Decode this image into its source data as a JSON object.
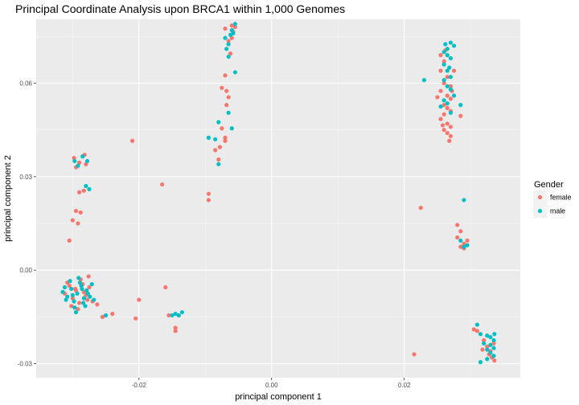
{
  "chart_data": {
    "type": "scatter",
    "title": "Principal Coordinate Analysis upon BRCA1 within 1,000 Genomes",
    "xlabel": "principal component 1",
    "ylabel": "principal component 2",
    "xlim": [
      -0.0355,
      0.0375
    ],
    "ylim": [
      -0.0345,
      0.0805
    ],
    "x_ticks": [
      -0.02,
      0.0,
      0.02
    ],
    "x_tick_labels": [
      "-0.02",
      "0.00",
      "0.02"
    ],
    "y_ticks": [
      -0.03,
      0.0,
      0.03,
      0.06
    ],
    "y_tick_labels": [
      "-0.03",
      "0.00",
      "0.03",
      "0.06"
    ],
    "grid": true,
    "legend": {
      "title": "Gender",
      "position": "right"
    },
    "series": [
      {
        "name": "female",
        "color": "#F8766D",
        "points": [
          [
            -0.0312,
            -0.0075
          ],
          [
            -0.0305,
            -0.005
          ],
          [
            -0.03,
            -0.009
          ],
          [
            -0.0295,
            -0.0065
          ],
          [
            -0.029,
            -0.0105
          ],
          [
            -0.0285,
            -0.0045
          ],
          [
            -0.028,
            -0.008
          ],
          [
            -0.0275,
            -0.0055
          ],
          [
            -0.0302,
            -0.0115
          ],
          [
            -0.0288,
            -0.003
          ],
          [
            -0.0278,
            -0.0095
          ],
          [
            -0.0296,
            -0.006
          ],
          [
            -0.0283,
            -0.007
          ],
          [
            -0.027,
            -0.01
          ],
          [
            -0.0263,
            -0.011
          ],
          [
            -0.0255,
            -0.015
          ],
          [
            -0.024,
            -0.014
          ],
          [
            -0.0276,
            -0.002
          ],
          [
            -0.0308,
            -0.004
          ],
          [
            -0.0292,
            -0.0125
          ],
          [
            -0.0298,
            0.036
          ],
          [
            -0.029,
            0.0345
          ],
          [
            -0.0282,
            0.037
          ],
          [
            -0.0295,
            0.033
          ],
          [
            -0.028,
            0.034
          ],
          [
            -0.029,
            0.025
          ],
          [
            -0.0283,
            0.0255
          ],
          [
            -0.0295,
            0.019
          ],
          [
            -0.0288,
            0.0185
          ],
          [
            -0.03,
            0.016
          ],
          [
            -0.0292,
            0.015
          ],
          [
            -0.0305,
            0.0095
          ],
          [
            -0.021,
            0.0415
          ],
          [
            -0.02,
            -0.0095
          ],
          [
            -0.0205,
            -0.0155
          ],
          [
            -0.0165,
            0.0275
          ],
          [
            -0.016,
            -0.0055
          ],
          [
            -0.0155,
            -0.0145
          ],
          [
            -0.0145,
            -0.0185
          ],
          [
            -0.0145,
            -0.0195
          ],
          [
            -0.0095,
            0.0245
          ],
          [
            -0.0095,
            0.0225
          ],
          [
            -0.0085,
            0.0385
          ],
          [
            -0.008,
            0.0355
          ],
          [
            -0.0078,
            0.0395
          ],
          [
            -0.0075,
            0.0455
          ],
          [
            -0.007,
            0.0425
          ],
          [
            -0.007,
            0.0415
          ],
          [
            -0.0068,
            0.053
          ],
          [
            -0.0068,
            0.0575
          ],
          [
            -0.0075,
            0.0585
          ],
          [
            -0.007,
            0.0625
          ],
          [
            -0.0065,
            0.0555
          ],
          [
            -0.006,
            0.0745
          ],
          [
            -0.0058,
            0.0765
          ],
          [
            -0.0062,
            0.0695
          ],
          [
            -0.0055,
            0.078
          ],
          [
            -0.0065,
            0.0735
          ],
          [
            -0.007,
            0.0775
          ],
          [
            -0.006,
            0.0785
          ],
          [
            0.0215,
            -0.027
          ],
          [
            0.0225,
            0.02
          ],
          [
            0.0255,
            0.069
          ],
          [
            0.026,
            0.067
          ],
          [
            0.0255,
            0.064
          ],
          [
            0.0265,
            0.062
          ],
          [
            0.026,
            0.06
          ],
          [
            0.027,
            0.059
          ],
          [
            0.0255,
            0.0575
          ],
          [
            0.0265,
            0.056
          ],
          [
            0.027,
            0.055
          ],
          [
            0.026,
            0.053
          ],
          [
            0.0265,
            0.052
          ],
          [
            0.027,
            0.051
          ],
          [
            0.026,
            0.05
          ],
          [
            0.0255,
            0.0485
          ],
          [
            0.0265,
            0.047
          ],
          [
            0.027,
            0.046
          ],
          [
            0.026,
            0.045
          ],
          [
            0.0265,
            0.044
          ],
          [
            0.027,
            0.043
          ],
          [
            0.0285,
            0.0495
          ],
          [
            0.025,
            0.0555
          ],
          [
            0.0275,
            0.064
          ],
          [
            0.0262,
            0.0705
          ],
          [
            0.0268,
            0.0415
          ],
          [
            0.0258,
            0.0465
          ],
          [
            0.0272,
            0.0575
          ],
          [
            0.028,
            0.0145
          ],
          [
            0.0285,
            0.0125
          ],
          [
            0.028,
            0.0105
          ],
          [
            0.029,
            0.0085
          ],
          [
            0.0285,
            0.0075
          ],
          [
            0.0295,
            0.0095
          ],
          [
            0.029,
            0.007
          ],
          [
            0.0305,
            -0.019
          ],
          [
            0.031,
            -0.0195
          ],
          [
            0.032,
            -0.0225
          ],
          [
            0.0325,
            -0.0245
          ],
          [
            0.033,
            -0.026
          ],
          [
            0.0328,
            -0.027
          ],
          [
            0.0335,
            -0.0235
          ],
          [
            0.0332,
            -0.028
          ],
          [
            0.0318,
            -0.0255
          ],
          [
            0.0336,
            -0.029
          ]
        ]
      },
      {
        "name": "male",
        "color": "#00BFC4",
        "points": [
          [
            -0.0315,
            -0.007
          ],
          [
            -0.0308,
            -0.0085
          ],
          [
            -0.0302,
            -0.006
          ],
          [
            -0.0298,
            -0.01
          ],
          [
            -0.0293,
            -0.0075
          ],
          [
            -0.0287,
            -0.005
          ],
          [
            -0.0283,
            -0.009
          ],
          [
            -0.0279,
            -0.0065
          ],
          [
            -0.0274,
            -0.0085
          ],
          [
            -0.0297,
            -0.012
          ],
          [
            -0.0289,
            -0.004
          ],
          [
            -0.0284,
            -0.0105
          ],
          [
            -0.0304,
            -0.0035
          ],
          [
            -0.0271,
            -0.0045
          ],
          [
            -0.031,
            -0.0095
          ],
          [
            -0.0291,
            -0.0025
          ],
          [
            -0.0281,
            -0.0115
          ],
          [
            -0.03,
            -0.008
          ],
          [
            -0.0286,
            -0.006
          ],
          [
            -0.0277,
            -0.0075
          ],
          [
            -0.0268,
            -0.0095
          ],
          [
            -0.025,
            -0.0145
          ],
          [
            -0.0312,
            -0.0055
          ],
          [
            -0.0295,
            -0.0135
          ],
          [
            -0.0297,
            0.035
          ],
          [
            -0.0285,
            0.0365
          ],
          [
            -0.0278,
            0.035
          ],
          [
            -0.0292,
            0.0335
          ],
          [
            -0.028,
            0.027
          ],
          [
            -0.0275,
            0.026
          ],
          [
            -0.015,
            -0.0145
          ],
          [
            -0.0145,
            -0.014
          ],
          [
            -0.014,
            -0.0145
          ],
          [
            -0.0135,
            -0.0135
          ],
          [
            -0.0095,
            0.0425
          ],
          [
            -0.008,
            0.0475
          ],
          [
            -0.008,
            0.034
          ],
          [
            -0.0085,
            0.042
          ],
          [
            -0.0065,
            0.0505
          ],
          [
            -0.006,
            0.0455
          ],
          [
            -0.0055,
            0.0635
          ],
          [
            -0.0065,
            0.0685
          ],
          [
            -0.0068,
            0.071
          ],
          [
            -0.0062,
            0.0755
          ],
          [
            -0.0058,
            0.076
          ],
          [
            -0.007,
            0.0745
          ],
          [
            -0.0055,
            0.079
          ],
          [
            -0.006,
            0.077
          ],
          [
            -0.0065,
            0.0725
          ],
          [
            0.023,
            0.061
          ],
          [
            0.026,
            0.07
          ],
          [
            0.0265,
            0.071
          ],
          [
            0.027,
            0.073
          ],
          [
            0.0265,
            0.069
          ],
          [
            0.027,
            0.068
          ],
          [
            0.026,
            0.066
          ],
          [
            0.0265,
            0.064
          ],
          [
            0.027,
            0.062
          ],
          [
            0.026,
            0.061
          ],
          [
            0.0265,
            0.059
          ],
          [
            0.027,
            0.058
          ],
          [
            0.0275,
            0.056
          ],
          [
            0.026,
            0.0545
          ],
          [
            0.0265,
            0.0535
          ],
          [
            0.0255,
            0.0525
          ],
          [
            0.027,
            0.0505
          ],
          [
            0.0285,
            0.053
          ],
          [
            0.0275,
            0.072
          ],
          [
            0.0262,
            0.0725
          ],
          [
            0.0268,
            0.065
          ],
          [
            0.029,
            0.0225
          ],
          [
            0.0285,
            0.0095
          ],
          [
            0.029,
            0.0075
          ],
          [
            0.0295,
            0.008
          ],
          [
            0.031,
            -0.0175
          ],
          [
            0.0315,
            -0.0205
          ],
          [
            0.0325,
            -0.021
          ],
          [
            0.033,
            -0.0215
          ],
          [
            0.0335,
            -0.0225
          ],
          [
            0.033,
            -0.024
          ],
          [
            0.0325,
            -0.0255
          ],
          [
            0.0335,
            -0.025
          ],
          [
            0.033,
            -0.0265
          ],
          [
            0.0335,
            -0.0275
          ],
          [
            0.0325,
            -0.0285
          ],
          [
            0.0315,
            -0.0295
          ],
          [
            0.032,
            -0.0235
          ],
          [
            0.0336,
            -0.0205
          ]
        ]
      }
    ]
  }
}
